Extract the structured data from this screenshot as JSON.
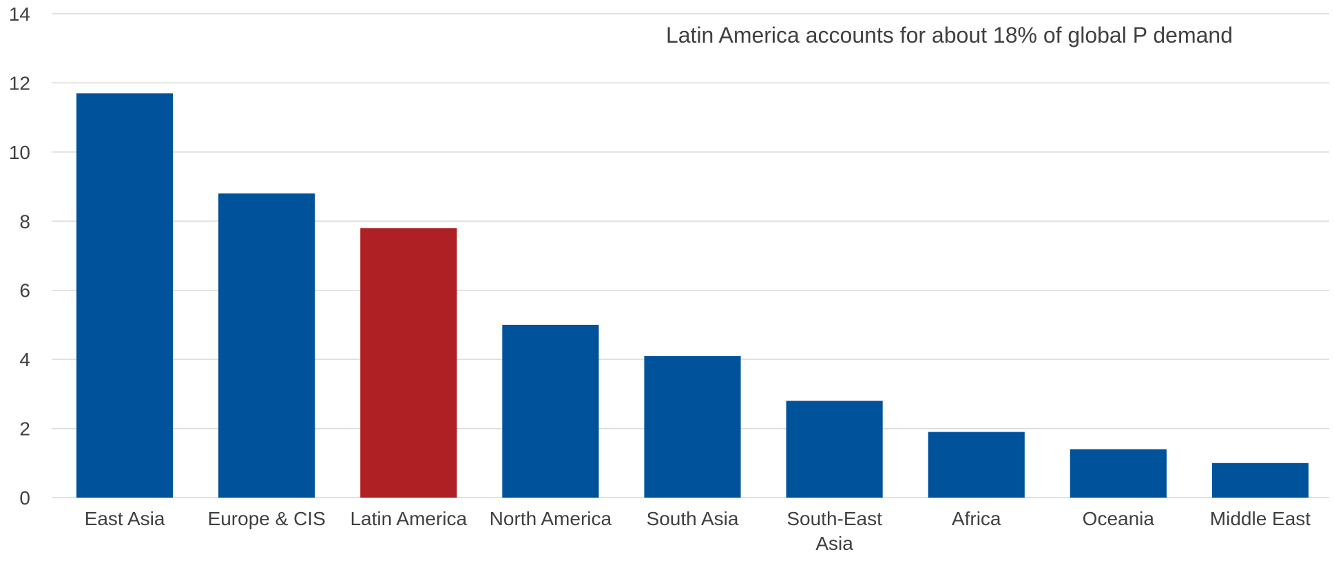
{
  "chart_data": {
    "type": "bar",
    "annotation": "Latin America accounts for about 18% of global P demand",
    "categories": [
      "East Asia",
      "Europe & CIS",
      "Latin America",
      "North America",
      "South Asia",
      "South-East Asia",
      "Africa",
      "Oceania",
      "Middle East"
    ],
    "values": [
      11.7,
      8.8,
      7.8,
      5.0,
      4.1,
      2.8,
      1.9,
      1.4,
      1.0
    ],
    "highlight_category": "Latin America",
    "ylim": [
      0,
      14
    ],
    "yticks": [
      0,
      2,
      4,
      6,
      8,
      10,
      12,
      14
    ],
    "grid": true,
    "legend": "none",
    "xlabel": "",
    "ylabel": "",
    "colors": {
      "bar": "#00529b",
      "highlight": "#ae2023",
      "grid": "#d9d9d9",
      "text": "#404040"
    }
  }
}
